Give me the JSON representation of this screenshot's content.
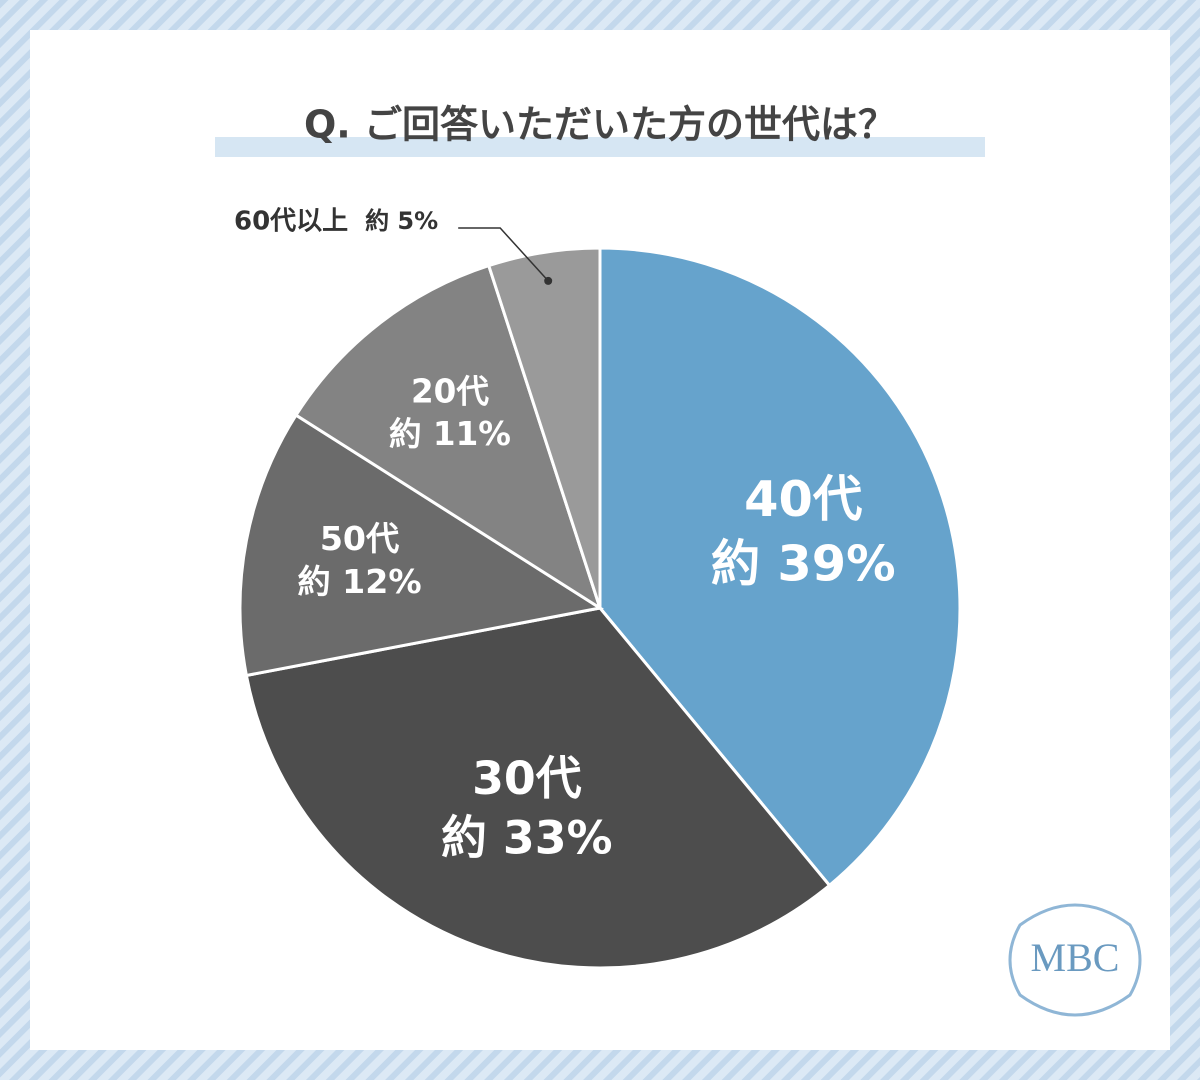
{
  "chart_data": {
    "type": "pie",
    "title": "Q. ご回答いただいた方の世代は？",
    "categories": [
      "40代",
      "30代",
      "50代",
      "20代",
      "60代以上"
    ],
    "values": [
      39,
      33,
      12,
      11,
      5
    ],
    "value_labels": [
      "約 39%",
      "約 33%",
      "約 12%",
      "約 11%",
      "約 5%"
    ],
    "colors": [
      "#66a3cc",
      "#4d4d4d",
      "#6b6b6b",
      "#838383",
      "#9a9a9a"
    ]
  },
  "logo": "MBC"
}
